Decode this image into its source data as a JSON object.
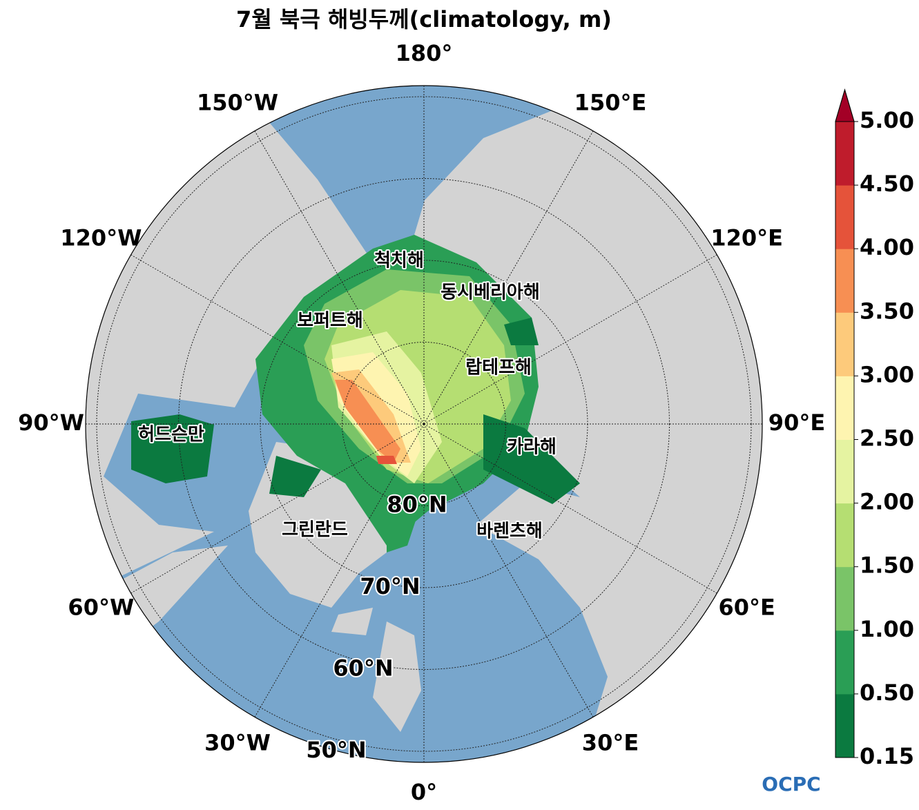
{
  "chart_data": {
    "type": "polar-map",
    "title": "7월 북극 해빙두께(climatology, m)",
    "meridians": [
      {
        "value": 180,
        "label": "180°"
      },
      {
        "value": 150,
        "label": "150°E"
      },
      {
        "value": 120,
        "label": "120°E"
      },
      {
        "value": 90,
        "label": "90°E"
      },
      {
        "value": 60,
        "label": "60°E"
      },
      {
        "value": 30,
        "label": "30°E"
      },
      {
        "value": 0,
        "label": "0°"
      },
      {
        "value": -30,
        "label": "30°W"
      },
      {
        "value": -60,
        "label": "60°W"
      },
      {
        "value": -90,
        "label": "90°W"
      },
      {
        "value": -120,
        "label": "120°W"
      },
      {
        "value": -150,
        "label": "150°W"
      }
    ],
    "parallels": [
      {
        "value": 80,
        "label": "80°N"
      },
      {
        "value": 70,
        "label": "70°N"
      },
      {
        "value": 60,
        "label": "60°N"
      },
      {
        "value": 50,
        "label": "50°N"
      }
    ],
    "region_labels": [
      "척치해",
      "동시베리아해",
      "보퍼트해",
      "랍테프해",
      "허드슨만",
      "카라해",
      "그린란드",
      "바렌츠해"
    ],
    "colorbar": {
      "ticks": [
        0.15,
        {
          "value": 0.5,
          "label": "0.50"
        },
        {
          "value": 1,
          "label": "1.00"
        },
        {
          "value": 1.5,
          "label": "1.50"
        },
        {
          "value": 2,
          "label": "2.00"
        },
        {
          "value": 2.5,
          "label": "2.50"
        },
        {
          "value": 3,
          "label": "3.00"
        },
        {
          "value": 3.5,
          "label": "3.50"
        },
        {
          "value": 4,
          "label": "4.00"
        },
        {
          "value": 4.5,
          "label": "4.50"
        },
        {
          "value": 5,
          "label": "5.00"
        }
      ],
      "colors": [
        "#0b7a40",
        "#2a9e55",
        "#7ac468",
        "#b5de72",
        "#e5f3a1",
        "#fef4b0",
        "#fdca7b",
        "#f78f53",
        "#e5533a",
        "#bf1c2c"
      ],
      "extend_color": "#a30026"
    },
    "logo": "OCPC"
  }
}
